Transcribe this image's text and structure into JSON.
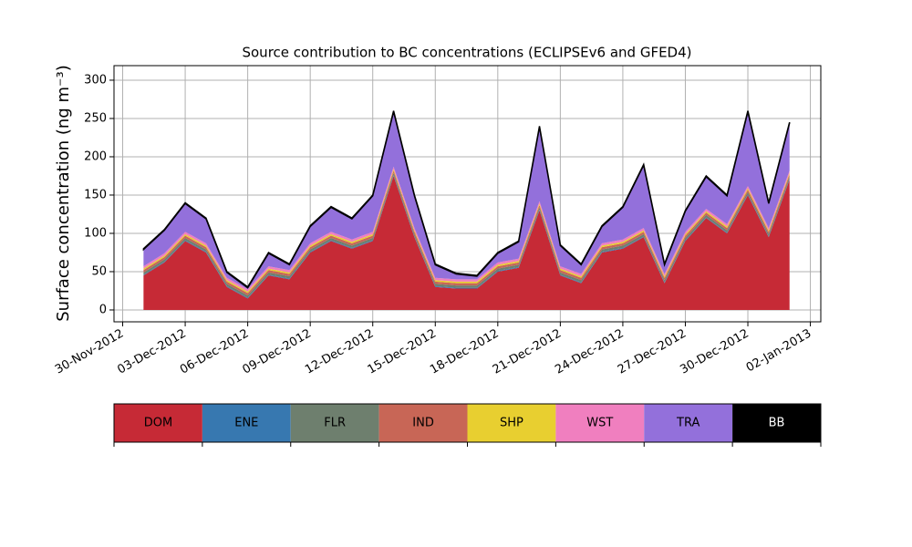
{
  "chart_data": {
    "type": "stacked_area",
    "title": "Source contribution to BC concentrations (ECLIPSEv6 and GFED4)",
    "y_label": "Surface concentration (ng m⁻³)",
    "x": [
      "2012-12-01",
      "2012-12-02",
      "2012-12-03",
      "2012-12-04",
      "2012-12-05",
      "2012-12-06",
      "2012-12-07",
      "2012-12-08",
      "2012-12-09",
      "2012-12-10",
      "2012-12-11",
      "2012-12-12",
      "2012-12-13",
      "2012-12-14",
      "2012-12-15",
      "2012-12-16",
      "2012-12-17",
      "2012-12-18",
      "2012-12-19",
      "2012-12-20",
      "2012-12-21",
      "2012-12-22",
      "2012-12-23",
      "2012-12-24",
      "2012-12-25",
      "2012-12-26",
      "2012-12-27",
      "2012-12-28",
      "2012-12-29",
      "2012-12-30",
      "2012-12-31",
      "2013-01-01"
    ],
    "series": [
      {
        "name": "DOM",
        "color": "#c62a36",
        "values": [
          45,
          62,
          90,
          75,
          30,
          15,
          45,
          40,
          75,
          90,
          80,
          90,
          175,
          95,
          30,
          28,
          28,
          50,
          55,
          130,
          45,
          35,
          75,
          80,
          95,
          35,
          90,
          120,
          100,
          150,
          95,
          170
        ]
      },
      {
        "name": "ENE",
        "color": "#3778b0",
        "values": [
          1,
          1,
          1,
          1,
          1,
          1,
          1,
          1,
          1,
          1,
          1,
          1,
          1,
          1,
          1,
          1,
          1,
          1,
          1,
          1,
          1,
          1,
          1,
          1,
          1,
          1,
          1,
          1,
          1,
          1,
          1,
          1
        ]
      },
      {
        "name": "FLR",
        "color": "#6e7f6e",
        "values": [
          3,
          3,
          3,
          3,
          3,
          3,
          3,
          3,
          3,
          3,
          3,
          3,
          3,
          3,
          3,
          3,
          3,
          3,
          3,
          3,
          3,
          3,
          3,
          3,
          3,
          3,
          3,
          3,
          3,
          3,
          3,
          3
        ]
      },
      {
        "name": "IND",
        "color": "#c86656",
        "values": [
          3,
          3,
          3,
          3,
          3,
          3,
          3,
          3,
          3,
          3,
          3,
          3,
          3,
          3,
          3,
          3,
          3,
          3,
          3,
          3,
          3,
          3,
          3,
          3,
          3,
          3,
          3,
          3,
          3,
          3,
          3,
          3
        ]
      },
      {
        "name": "SHP",
        "color": "#e8cf30",
        "values": [
          2,
          2,
          2,
          2,
          2,
          2,
          2,
          2,
          2,
          2,
          2,
          2,
          2,
          2,
          2,
          2,
          2,
          2,
          2,
          2,
          2,
          2,
          2,
          2,
          2,
          2,
          2,
          2,
          2,
          2,
          2,
          2
        ]
      },
      {
        "name": "WST",
        "color": "#f07fbf",
        "values": [
          3,
          3,
          3,
          3,
          3,
          3,
          3,
          3,
          3,
          3,
          3,
          3,
          3,
          3,
          3,
          3,
          3,
          3,
          3,
          3,
          3,
          3,
          3,
          3,
          3,
          3,
          3,
          3,
          3,
          3,
          3,
          3
        ]
      },
      {
        "name": "TRA",
        "color": "#9370db",
        "values": [
          22,
          30,
          37,
          32,
          7,
          2,
          17,
          7,
          22,
          32,
          27,
          47,
          72,
          42,
          17,
          7,
          4,
          12,
          22,
          97,
          27,
          12,
          22,
          42,
          82,
          12,
          27,
          42,
          37,
          97,
          32,
          62
        ]
      },
      {
        "name": "BB",
        "color": "#000000",
        "values": [
          1,
          1,
          1,
          1,
          1,
          1,
          1,
          1,
          1,
          1,
          1,
          1,
          1,
          1,
          1,
          1,
          1,
          1,
          1,
          1,
          1,
          1,
          1,
          1,
          1,
          1,
          1,
          1,
          1,
          1,
          1,
          1
        ]
      }
    ],
    "xlim": [
      "2012-11-29T14:00Z",
      "2013-01-02T12:00Z"
    ],
    "xticks": [
      {
        "value": "2012-11-30",
        "label": "30-Nov-2012"
      },
      {
        "value": "2012-12-03",
        "label": "03-Dec-2012"
      },
      {
        "value": "2012-12-06",
        "label": "06-Dec-2012"
      },
      {
        "value": "2012-12-09",
        "label": "09-Dec-2012"
      },
      {
        "value": "2012-12-12",
        "label": "12-Dec-2012"
      },
      {
        "value": "2012-12-15",
        "label": "15-Dec-2012"
      },
      {
        "value": "2012-12-18",
        "label": "18-Dec-2012"
      },
      {
        "value": "2012-12-21",
        "label": "21-Dec-2012"
      },
      {
        "value": "2012-12-24",
        "label": "24-Dec-2012"
      },
      {
        "value": "2012-12-27",
        "label": "27-Dec-2012"
      },
      {
        "value": "2012-12-30",
        "label": "30-Dec-2012"
      },
      {
        "value": "2013-01-02",
        "label": "02-Jan-2013"
      }
    ],
    "ylim": [
      -15.5,
      319
    ],
    "yticks": [
      0,
      50,
      100,
      150,
      200,
      250,
      300
    ],
    "grid": true
  }
}
